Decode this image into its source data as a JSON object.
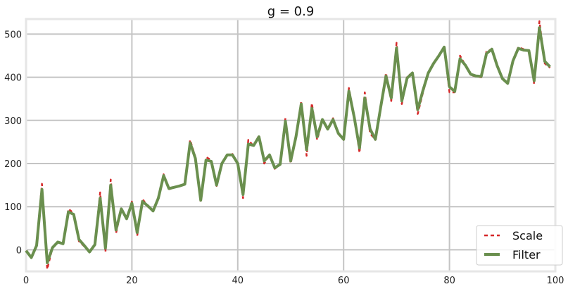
{
  "chart_data": {
    "type": "line",
    "title": "g = 0.9",
    "xlabel": "",
    "ylabel": "",
    "xlim": [
      0,
      100
    ],
    "ylim": [
      -50,
      535
    ],
    "x_ticks": [
      0,
      20,
      40,
      60,
      80,
      100
    ],
    "y_ticks": [
      0,
      100,
      200,
      300,
      400,
      500
    ],
    "grid": true,
    "legend_position": "bottom-right",
    "series": [
      {
        "name": "Scale",
        "style": "dashed",
        "color": "#d62728",
        "x": [
          0,
          1,
          2,
          3,
          4,
          5,
          6,
          7,
          8,
          9,
          10,
          11,
          12,
          13,
          14,
          15,
          16,
          17,
          18,
          19,
          20,
          21,
          22,
          23,
          24,
          25,
          26,
          27,
          28,
          29,
          30,
          31,
          32,
          33,
          34,
          35,
          36,
          37,
          38,
          39,
          40,
          41,
          42,
          43,
          44,
          45,
          46,
          47,
          48,
          49,
          50,
          51,
          52,
          53,
          54,
          55,
          56,
          57,
          58,
          59,
          60,
          61,
          62,
          63,
          64,
          65,
          66,
          67,
          68,
          69,
          70,
          71,
          72,
          73,
          74,
          75,
          76,
          77,
          78,
          79,
          80,
          81,
          82,
          83,
          84,
          85,
          86,
          87,
          88,
          89,
          90,
          91,
          92,
          93,
          94,
          95,
          96,
          97,
          98,
          99
        ],
        "values": [
          -2,
          -18,
          12,
          153,
          -45,
          5,
          18,
          14,
          95,
          85,
          20,
          8,
          -5,
          12,
          133,
          -5,
          163,
          38,
          95,
          72,
          112,
          32,
          118,
          100,
          90,
          120,
          175,
          140,
          145,
          148,
          152,
          255,
          215,
          110,
          215,
          208,
          148,
          200,
          220,
          222,
          200,
          120,
          255,
          240,
          265,
          200,
          220,
          188,
          198,
          305,
          200,
          262,
          345,
          218,
          340,
          255,
          300,
          280,
          305,
          268,
          255,
          375,
          310,
          225,
          365,
          270,
          255,
          330,
          410,
          345,
          480,
          338,
          402,
          410,
          315,
          365,
          410,
          432,
          452,
          468,
          365,
          365,
          450,
          428,
          405,
          402,
          400,
          460,
          465,
          427,
          397,
          385,
          440,
          470,
          465,
          460,
          385,
          530,
          432,
          422
        ]
      },
      {
        "name": "Filter",
        "style": "solid",
        "color": "#6a8f4e",
        "x": [
          0,
          1,
          2,
          3,
          4,
          5,
          6,
          7,
          8,
          9,
          10,
          11,
          12,
          13,
          14,
          15,
          16,
          17,
          18,
          19,
          20,
          21,
          22,
          23,
          24,
          25,
          26,
          27,
          28,
          29,
          30,
          31,
          32,
          33,
          34,
          35,
          36,
          37,
          38,
          39,
          40,
          41,
          42,
          43,
          44,
          45,
          46,
          47,
          48,
          49,
          50,
          51,
          52,
          53,
          54,
          55,
          56,
          57,
          58,
          59,
          60,
          61,
          62,
          63,
          64,
          65,
          66,
          67,
          68,
          69,
          70,
          71,
          72,
          73,
          74,
          75,
          76,
          77,
          78,
          79,
          80,
          81,
          82,
          83,
          84,
          85,
          86,
          87,
          88,
          89,
          90,
          91,
          92,
          93,
          94,
          95,
          96,
          97,
          98,
          99
        ],
        "values": [
          -2,
          -18,
          10,
          140,
          -30,
          5,
          18,
          14,
          88,
          82,
          24,
          10,
          -5,
          12,
          120,
          4,
          150,
          46,
          95,
          72,
          108,
          40,
          112,
          102,
          90,
          120,
          172,
          142,
          145,
          148,
          152,
          248,
          212,
          115,
          208,
          205,
          150,
          200,
          220,
          220,
          200,
          128,
          245,
          242,
          262,
          206,
          220,
          190,
          198,
          298,
          206,
          262,
          338,
          232,
          328,
          262,
          302,
          280,
          302,
          270,
          256,
          368,
          308,
          236,
          352,
          280,
          256,
          330,
          403,
          352,
          468,
          345,
          398,
          410,
          325,
          370,
          410,
          432,
          450,
          470,
          378,
          367,
          443,
          428,
          407,
          403,
          402,
          455,
          465,
          427,
          397,
          386,
          438,
          467,
          463,
          462,
          392,
          515,
          437,
          424
        ]
      }
    ]
  }
}
